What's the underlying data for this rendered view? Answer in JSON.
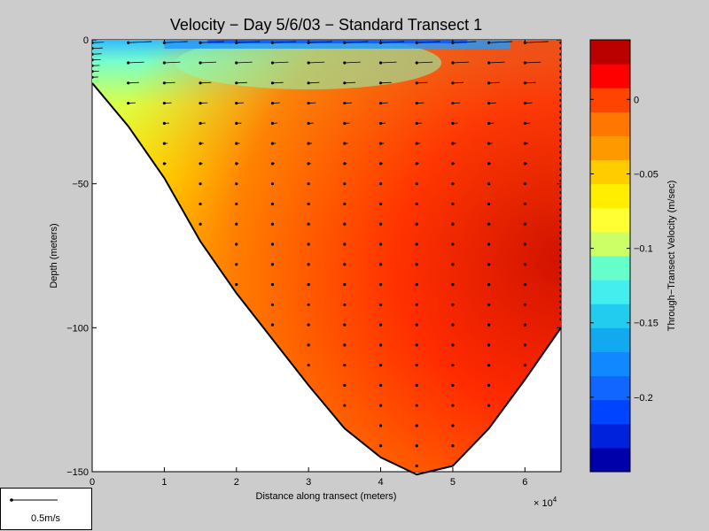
{
  "chart_data": {
    "type": "heatmap",
    "title": "Velocity − Day 5/6/03 − Standard Transect 1",
    "xlabel": "Distance along transect (meters)",
    "ylabel": "Depth (meters)",
    "x_exponent_label": "× 10",
    "x_exponent_power": "4",
    "xlim": [
      0,
      6.5
    ],
    "ylim": [
      -150,
      0
    ],
    "x_ticks": [
      "0",
      "1",
      "2",
      "3",
      "4",
      "5",
      "6"
    ],
    "y_ticks": [
      "0",
      "−50",
      "−100",
      "−150"
    ],
    "bottom_profile": {
      "x": [
        0,
        0.5,
        1.0,
        1.5,
        2.0,
        2.5,
        3.0,
        3.5,
        4.0,
        4.5,
        5.0,
        5.5,
        6.0,
        6.5
      ],
      "depth": [
        -15,
        -30,
        -48,
        -70,
        -88,
        -104,
        -120,
        -135,
        -145,
        -151,
        -148,
        -135,
        -118,
        -100
      ]
    },
    "colorbar": {
      "label": "Through−Transect Velocity (m/sec)",
      "range": [
        -0.25,
        0.04
      ],
      "levels": 18,
      "ticks": [
        "0",
        "−0.05",
        "−0.1",
        "−0.15",
        "−0.2"
      ],
      "tick_values": [
        0,
        -0.05,
        -0.1,
        -0.15,
        -0.2
      ]
    },
    "vector_legend": {
      "label": "0.5m/s"
    }
  }
}
